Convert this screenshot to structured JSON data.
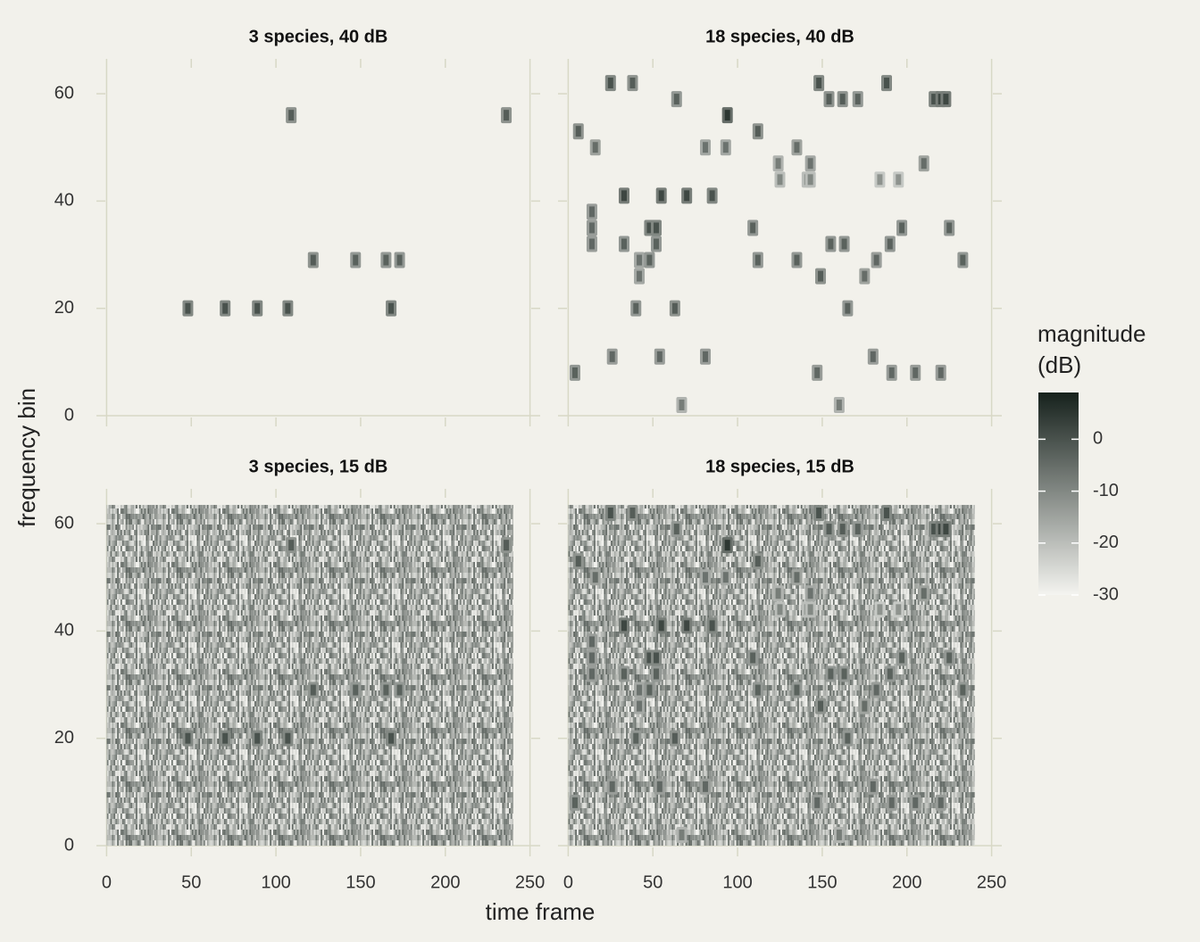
{
  "chart_data": [
    {
      "type": "heatmap",
      "title": "3 species, 40 dB",
      "xlim": [
        -6,
        256
      ],
      "ylim": [
        -2,
        66.5
      ],
      "xticks": [
        0,
        50,
        100,
        150,
        200,
        250
      ],
      "yticks": [
        0,
        20,
        40,
        60
      ],
      "noise": false,
      "x": [
        48,
        70,
        89,
        107,
        109,
        122,
        147,
        165,
        168,
        173,
        236
      ],
      "y": [
        20,
        20,
        20,
        20,
        56,
        29,
        29,
        29,
        20,
        29,
        56
      ],
      "values": [
        0,
        0,
        0,
        0,
        -2,
        -2,
        -3,
        -3,
        0,
        -3,
        -2
      ]
    },
    {
      "type": "heatmap",
      "title": "18 species, 40 dB",
      "xlim": [
        -6,
        256
      ],
      "ylim": [
        -2,
        66.5
      ],
      "xticks": [
        0,
        50,
        100,
        150,
        200,
        250
      ],
      "yticks": [
        0,
        20,
        40,
        60
      ],
      "noise": false,
      "x": [
        4,
        6,
        16,
        14,
        14,
        14,
        25,
        38,
        26,
        33,
        33,
        40,
        42,
        42,
        48,
        48,
        52,
        52,
        55,
        54,
        63,
        64,
        67,
        70,
        81,
        81,
        85,
        93,
        94,
        109,
        112,
        112,
        124,
        125,
        135,
        135,
        141,
        143,
        143,
        148,
        147,
        149,
        154,
        155,
        160,
        162,
        163,
        165,
        171,
        175,
        180,
        182,
        184,
        188,
        190,
        191,
        195,
        197,
        205,
        210,
        216,
        220,
        220,
        223,
        225,
        233
      ],
      "y": [
        8,
        53,
        50,
        38,
        35,
        32,
        62,
        62,
        11,
        41,
        32,
        20,
        29,
        26,
        35,
        29,
        35,
        32,
        41,
        11,
        20,
        59,
        2,
        41,
        50,
        11,
        41,
        50,
        56,
        35,
        53,
        29,
        47,
        44,
        50,
        29,
        44,
        47,
        44,
        62,
        8,
        26,
        59,
        32,
        2,
        59,
        32,
        20,
        59,
        26,
        11,
        29,
        44,
        62,
        32,
        8,
        44,
        35,
        8,
        47,
        59,
        59,
        8,
        59,
        35,
        29
      ],
      "values": [
        -3,
        -2,
        -5,
        -4,
        -4,
        -4,
        0,
        -2,
        -4,
        2,
        -3,
        -3,
        -6,
        -6,
        0,
        -3,
        0,
        -3,
        2,
        -4,
        -2,
        -3,
        -8,
        2,
        -6,
        -4,
        0,
        -6,
        5,
        -3,
        -2,
        -3,
        -8,
        -10,
        -5,
        -3,
        -10,
        -6,
        -10,
        0,
        -4,
        -2,
        -2,
        -3,
        -8,
        -2,
        -3,
        -3,
        -3,
        -5,
        -4,
        -4,
        -12,
        0,
        -3,
        -4,
        -12,
        -3,
        -4,
        -5,
        0,
        2,
        -4,
        2,
        -3,
        -3
      ]
    },
    {
      "type": "heatmap",
      "title": "3 species, 15 dB",
      "xlim": [
        -6,
        256
      ],
      "ylim": [
        -2,
        66.5
      ],
      "xticks": [
        0,
        50,
        100,
        150,
        200,
        250
      ],
      "yticks": [
        0,
        20,
        40,
        60
      ],
      "noise": true,
      "noise_x": [
        0,
        240
      ],
      "noise_y": [
        0,
        63.5
      ],
      "x": [
        48,
        70,
        89,
        107,
        109,
        122,
        147,
        165,
        168,
        173,
        236
      ],
      "y": [
        20,
        20,
        20,
        20,
        56,
        29,
        29,
        29,
        20,
        29,
        56
      ],
      "values": [
        0,
        0,
        0,
        0,
        -2,
        -2,
        -3,
        -3,
        0,
        -3,
        -2
      ]
    },
    {
      "type": "heatmap",
      "title": "18 species, 15 dB",
      "xlim": [
        -6,
        256
      ],
      "ylim": [
        -2,
        66.5
      ],
      "xticks": [
        0,
        50,
        100,
        150,
        200,
        250
      ],
      "yticks": [
        0,
        20,
        40,
        60
      ],
      "noise": true,
      "noise_x": [
        0,
        240
      ],
      "noise_y": [
        0,
        63.5
      ],
      "x": [
        4,
        6,
        16,
        14,
        14,
        14,
        25,
        38,
        26,
        33,
        33,
        40,
        42,
        42,
        48,
        48,
        52,
        52,
        55,
        54,
        63,
        64,
        67,
        70,
        81,
        81,
        85,
        93,
        94,
        109,
        112,
        112,
        124,
        125,
        135,
        135,
        141,
        143,
        143,
        148,
        147,
        149,
        154,
        155,
        160,
        162,
        163,
        165,
        171,
        175,
        180,
        182,
        184,
        188,
        190,
        191,
        195,
        197,
        205,
        210,
        216,
        220,
        220,
        223,
        225,
        233
      ],
      "y": [
        8,
        53,
        50,
        38,
        35,
        32,
        62,
        62,
        11,
        41,
        32,
        20,
        29,
        26,
        35,
        29,
        35,
        32,
        41,
        11,
        20,
        59,
        2,
        41,
        50,
        11,
        41,
        50,
        56,
        35,
        53,
        29,
        47,
        44,
        50,
        29,
        44,
        47,
        44,
        62,
        8,
        26,
        59,
        32,
        2,
        59,
        32,
        20,
        59,
        26,
        11,
        29,
        44,
        62,
        32,
        8,
        44,
        35,
        8,
        47,
        59,
        59,
        8,
        59,
        35,
        29
      ],
      "values": [
        -3,
        -2,
        -5,
        -4,
        -4,
        -4,
        0,
        -2,
        -4,
        2,
        -3,
        -3,
        -6,
        -6,
        0,
        -3,
        0,
        -3,
        2,
        -4,
        -2,
        -3,
        -8,
        2,
        -6,
        -4,
        0,
        -6,
        5,
        -3,
        -2,
        -3,
        -8,
        -10,
        -5,
        -3,
        -10,
        -6,
        -10,
        0,
        -4,
        -2,
        -2,
        -3,
        -8,
        -2,
        -3,
        -3,
        -3,
        -5,
        -4,
        -4,
        -12,
        0,
        -3,
        -4,
        -12,
        -3,
        -4,
        -5,
        0,
        2,
        -4,
        2,
        -3,
        -3
      ]
    }
  ],
  "x_label": "time frame",
  "y_label": "frequency bin",
  "colorbar": {
    "title": [
      "magnitude",
      "(dB)"
    ],
    "lim": [
      -30,
      9
    ],
    "ticks": [
      0,
      -10,
      -20,
      -30
    ],
    "colors": [
      "#f4f4f0",
      "#16211c"
    ]
  }
}
